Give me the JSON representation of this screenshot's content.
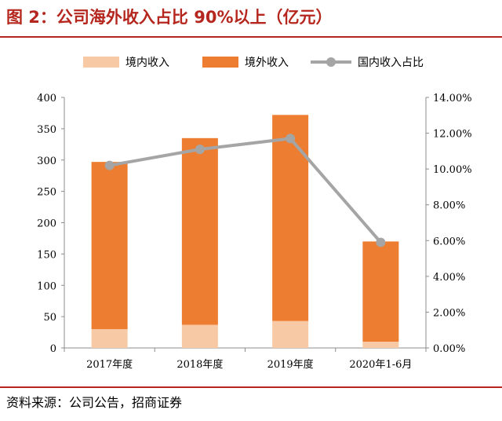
{
  "figure": {
    "title": "图 2：公司海外收入占比 90%以上（亿元）",
    "source": "资料来源：公司公告，招商证券"
  },
  "chart_data": {
    "type": "bar",
    "stacked": true,
    "categories": [
      "2017年度",
      "2018年度",
      "2019年度",
      "2020年1-6月"
    ],
    "series": [
      {
        "name": "境内收入",
        "kind": "bar",
        "axis": "left",
        "color": "#f8c9a5",
        "values": [
          30,
          37,
          43,
          10
        ]
      },
      {
        "name": "境外收入",
        "kind": "bar",
        "axis": "left",
        "color": "#ed7d31",
        "values": [
          267,
          298,
          329,
          160
        ]
      },
      {
        "name": "国内收入占比",
        "kind": "line",
        "axis": "right",
        "color": "#a5a5a5",
        "values": [
          10.2,
          11.1,
          11.7,
          5.9
        ]
      }
    ],
    "ylim": [
      0,
      400
    ],
    "yticks": [
      "0",
      "50",
      "100",
      "150",
      "200",
      "250",
      "300",
      "350",
      "400"
    ],
    "y2lim": [
      0,
      14
    ],
    "y2ticks": [
      "0.00%",
      "2.00%",
      "4.00%",
      "6.00%",
      "8.00%",
      "10.00%",
      "12.00%",
      "14.00%"
    ],
    "grid": false,
    "legend_position": "top"
  }
}
